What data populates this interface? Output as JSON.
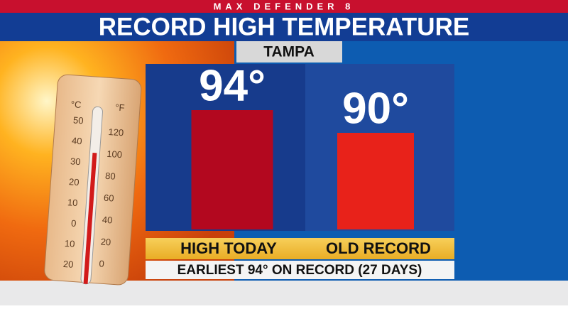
{
  "brand": "MAX DEFENDER 8",
  "chart_data": {
    "type": "bar",
    "title": "RECORD HIGH TEMPERATURE",
    "subtitle": "TAMPA",
    "categories": [
      "HIGH TODAY",
      "OLD RECORD"
    ],
    "values": [
      94,
      90
    ],
    "value_labels": [
      "94°",
      "90°"
    ],
    "colors": [
      "#b3081f",
      "#e8221a"
    ],
    "ylim": [
      73,
      100
    ],
    "note": "EARLIEST 94° ON RECORD (27 DAYS)"
  },
  "thermometer": {
    "left_unit": "°C",
    "right_unit": "°F",
    "left_labels": [
      "50",
      "40",
      "30",
      "20",
      "10",
      "0",
      "10",
      "20"
    ],
    "right_labels": [
      "120",
      "100",
      "80",
      "60",
      "40",
      "20",
      "0"
    ]
  }
}
